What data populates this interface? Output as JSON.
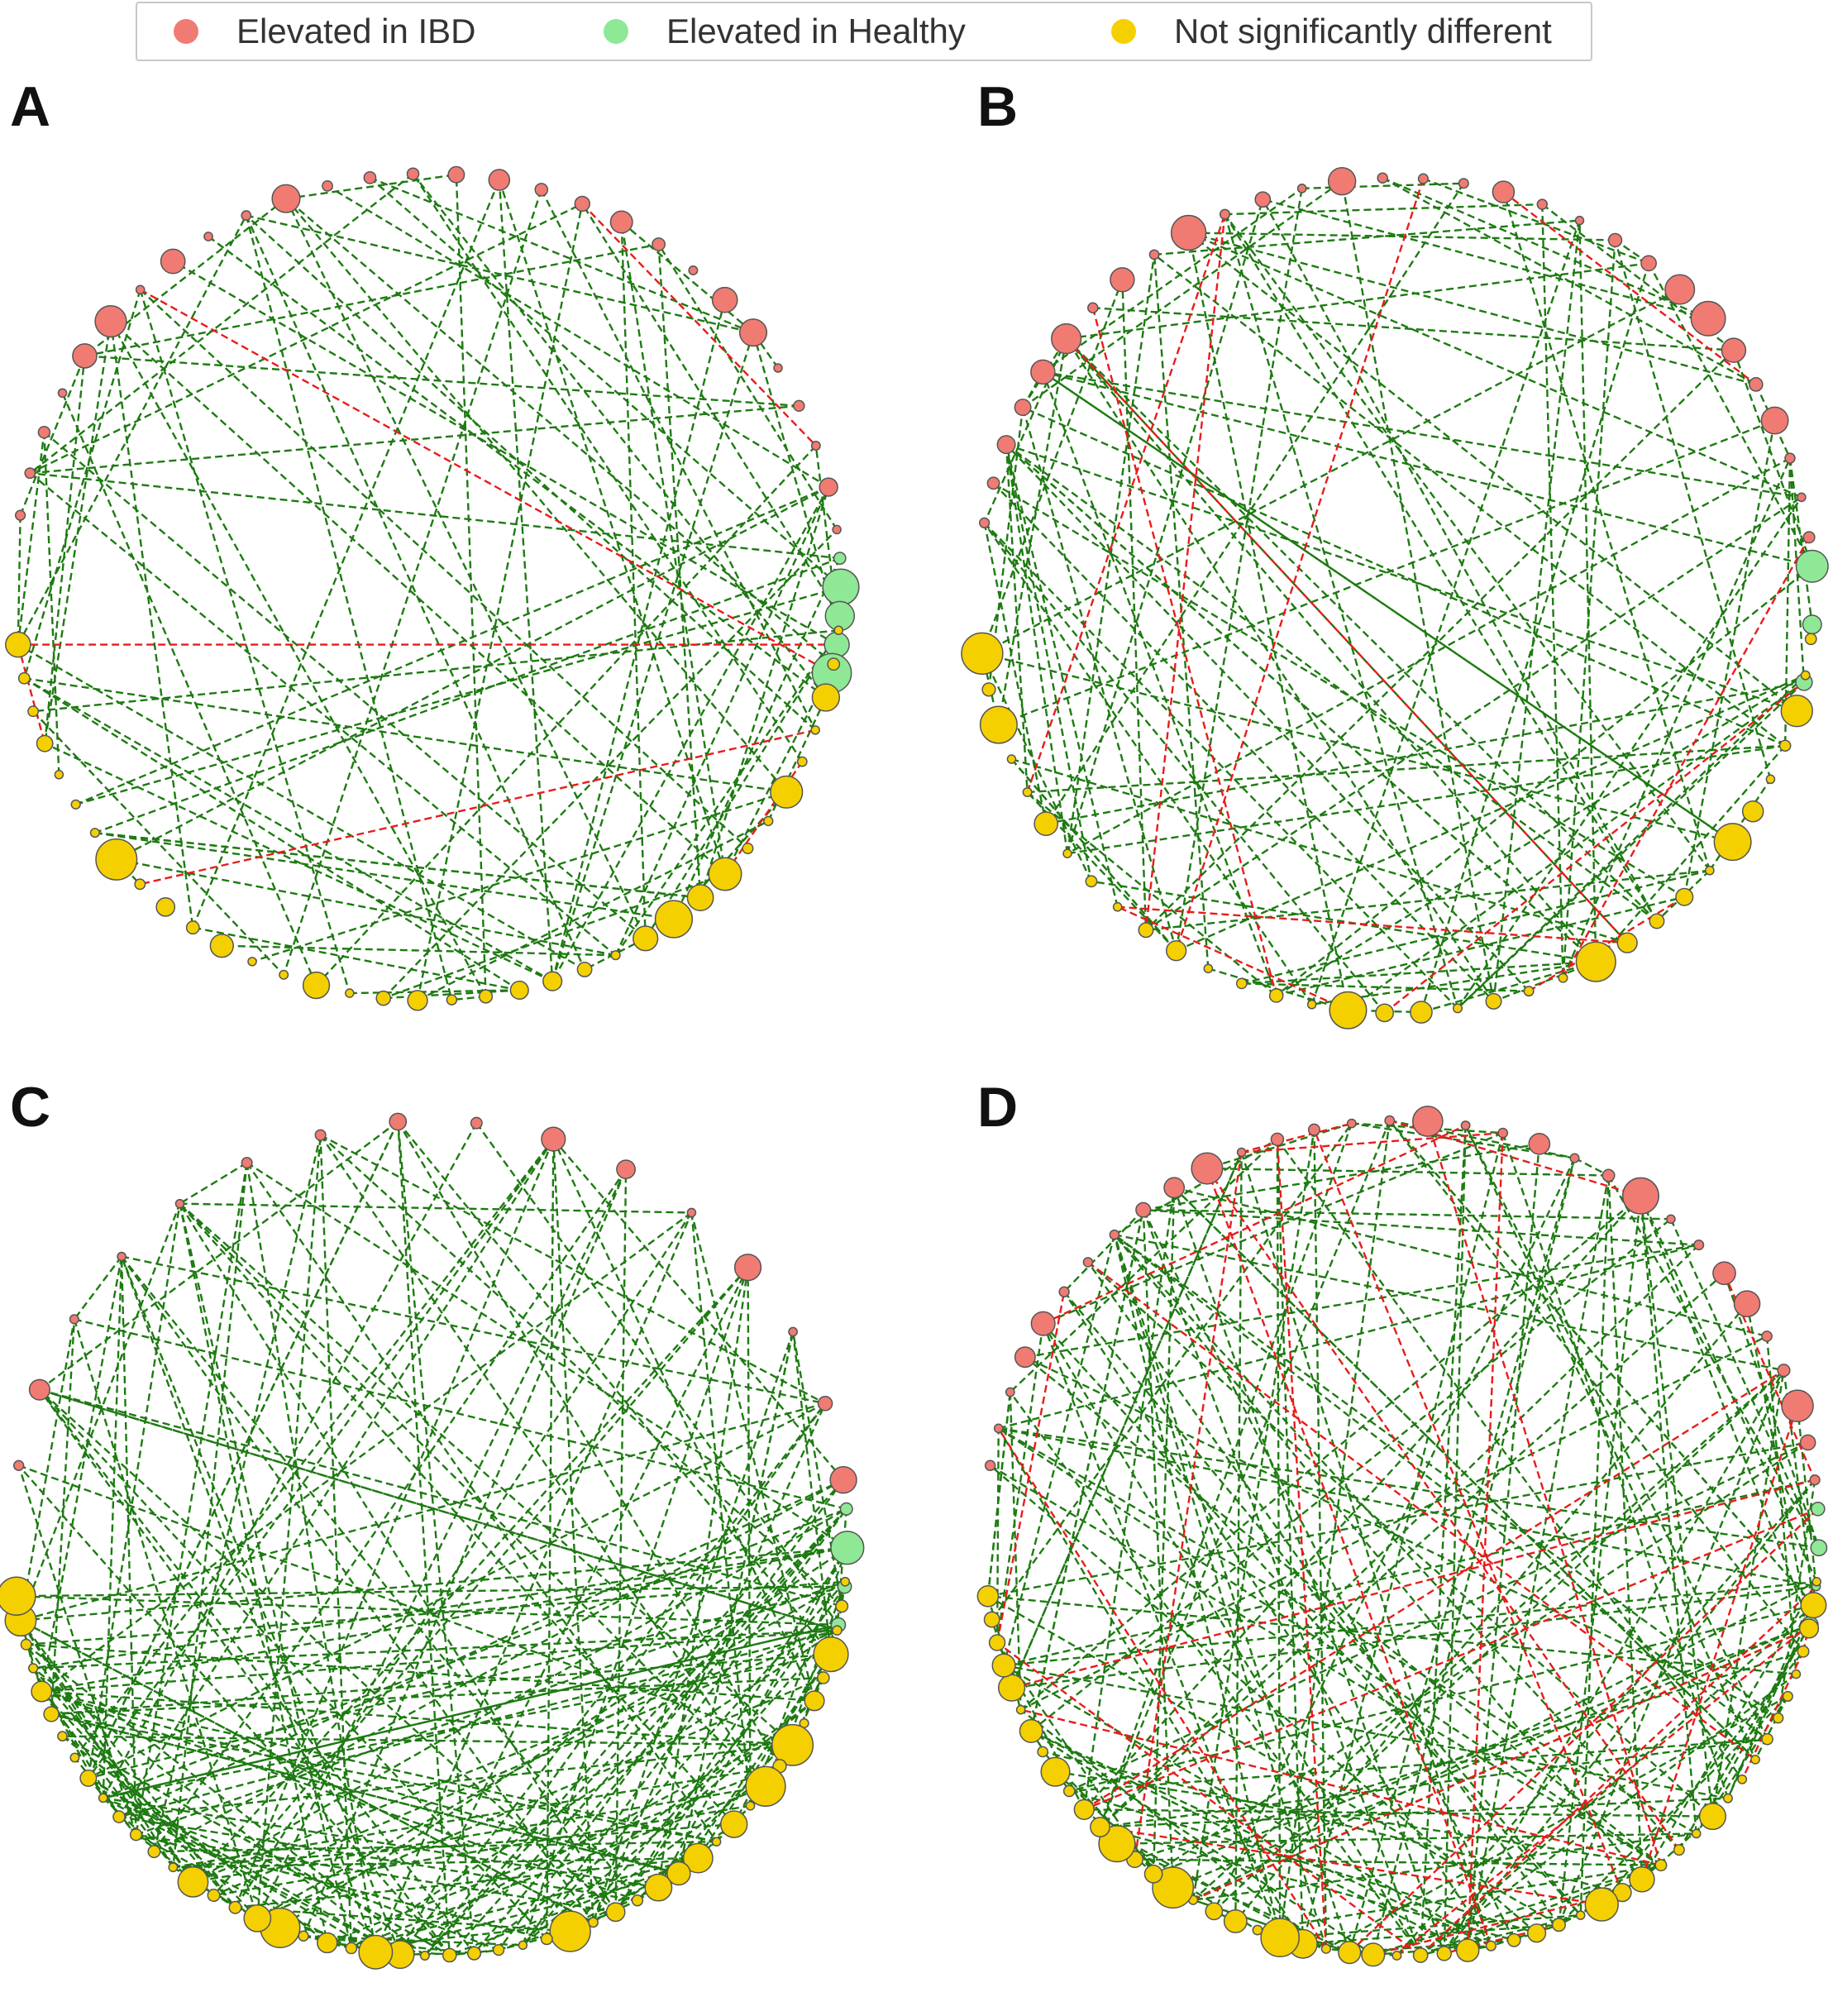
{
  "legend": {
    "items": [
      {
        "label": "Elevated in IBD",
        "color": "#f07b72"
      },
      {
        "label": "Elevated in Healthy",
        "color": "#8fe896"
      },
      {
        "label": "Not significantly different",
        "color": "#f5d000"
      }
    ]
  },
  "edge_colors": {
    "positive": "#1e7a12",
    "negative": "#e81c1c"
  },
  "panels": [
    {
      "label": "A",
      "red": 28,
      "green": 5,
      "yellow": 36,
      "green_edges": 95,
      "red_edges": 6,
      "seed": 11
    },
    {
      "label": "B",
      "red": 30,
      "green": 3,
      "yellow": 34,
      "green_edges": 115,
      "red_edges": 11,
      "seed": 23
    },
    {
      "label": "C",
      "red": 16,
      "green": 4,
      "yellow": 50,
      "green_edges": 220,
      "red_edges": 0,
      "seed": 37
    },
    {
      "label": "D",
      "red": 32,
      "green": 4,
      "yellow": 52,
      "green_edges": 190,
      "red_edges": 30,
      "seed": 53
    }
  ]
}
